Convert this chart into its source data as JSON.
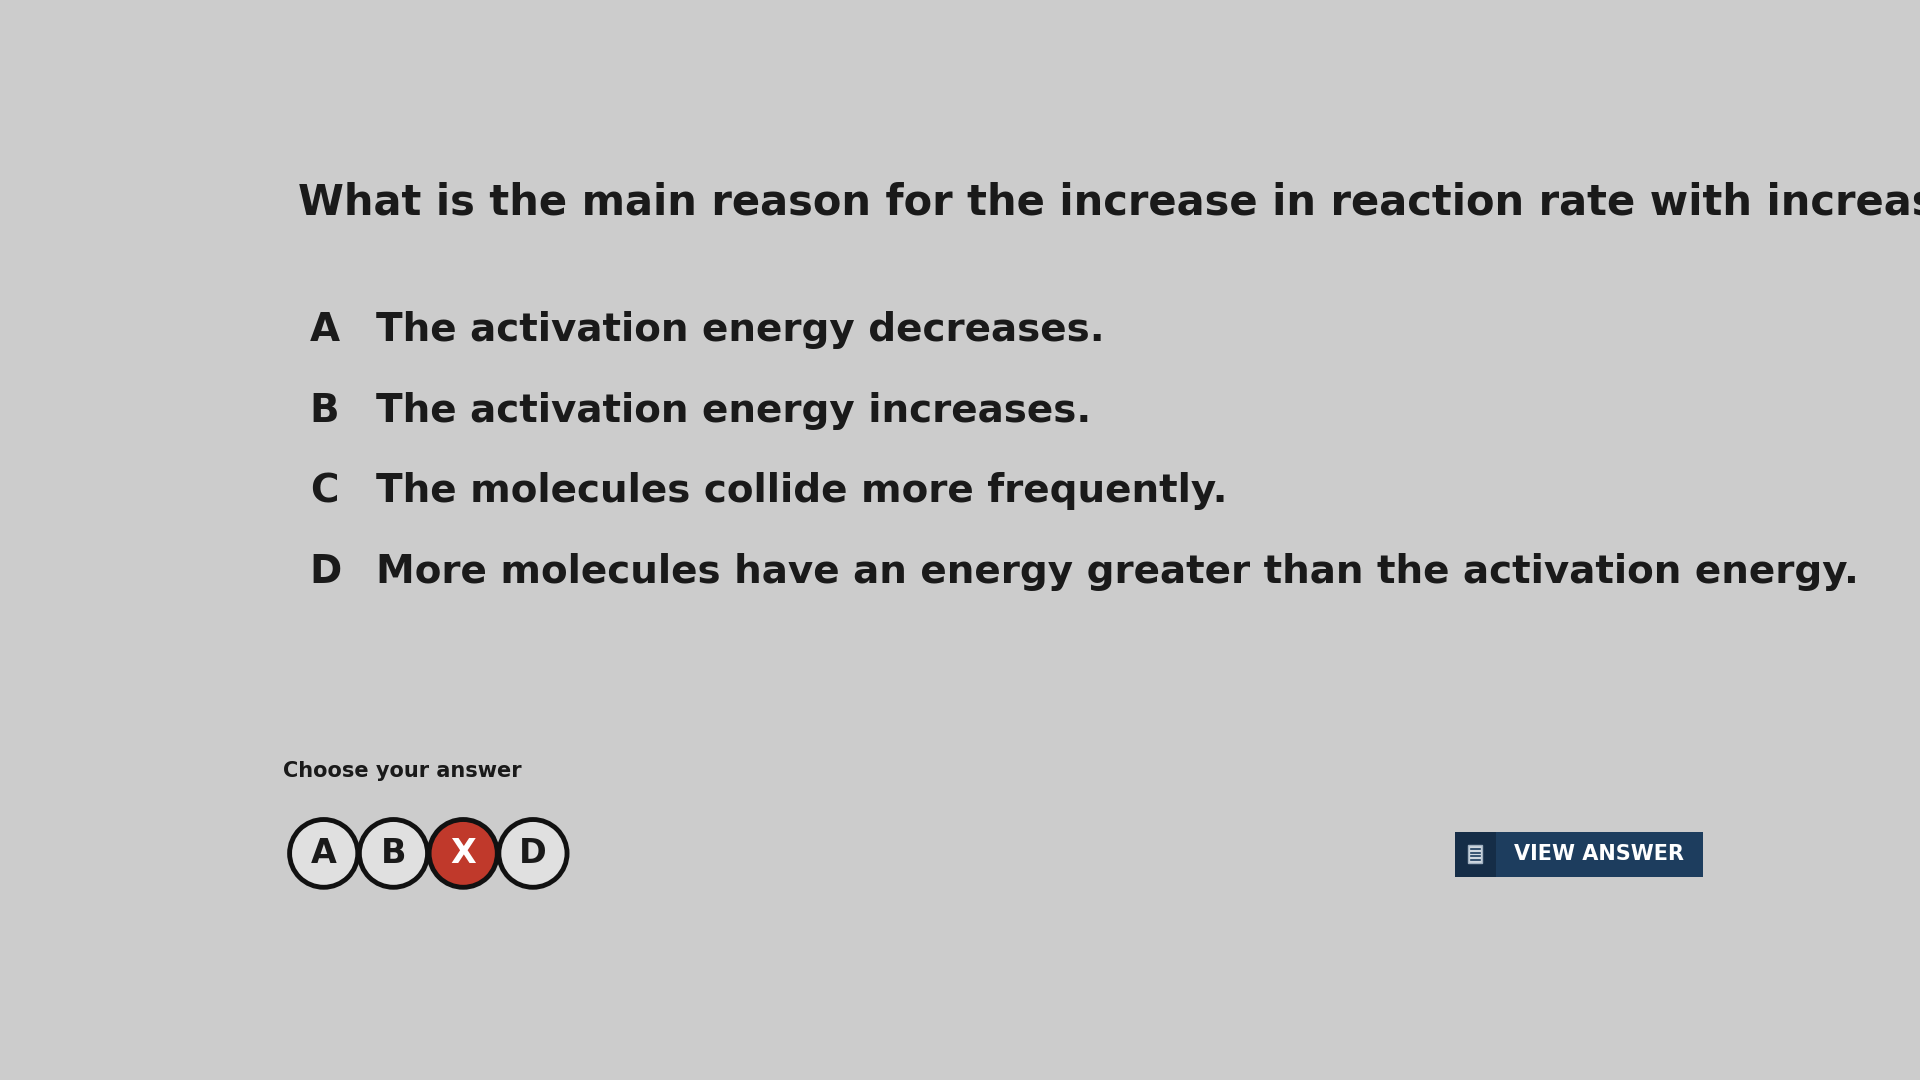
{
  "question": "What is the main reason for the increase in reaction rate with increasing temperature?",
  "options": [
    {
      "label": "A",
      "text": "The activation energy decreases."
    },
    {
      "label": "B",
      "text": "The activation energy increases."
    },
    {
      "label": "C",
      "text": "The molecules collide more frequently."
    },
    {
      "label": "D",
      "text": "More molecules have an energy greater than the activation energy."
    }
  ],
  "choose_label": "Choose your answer",
  "answer_buttons": [
    "A",
    "B",
    "X",
    "D"
  ],
  "answer_button_colors": [
    "#e0e0e0",
    "#e0e0e0",
    "#c0392b",
    "#e0e0e0"
  ],
  "answer_button_text_colors": [
    "#1a1a1a",
    "#1a1a1a",
    "#ffffff",
    "#1a1a1a"
  ],
  "view_answer_bg": "#1d3d5e",
  "view_answer_icon_bg": "#152d47",
  "view_answer_text": "VIEW ANSWER",
  "background_color": "#cccccc",
  "question_fontsize": 30,
  "option_label_fontsize": 28,
  "option_text_fontsize": 28,
  "choose_fontsize": 15,
  "button_fontsize": 24,
  "view_answer_fontsize": 15
}
